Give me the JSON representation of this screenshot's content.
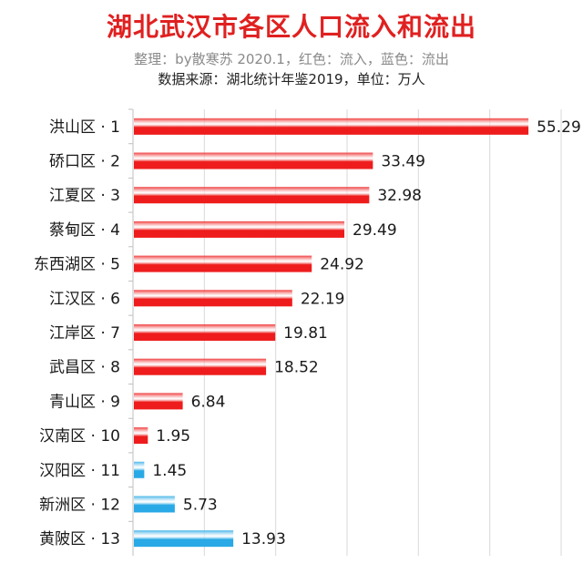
{
  "title": "湖北武汉市各区人口流入和流出",
  "subtitle": "整理：by散寒苏 2020.1，红色：流入，蓝色：流出",
  "source": "数据来源：湖北统计年鉴2019，单位：万人",
  "colors": {
    "inflow": "#ee1c1c",
    "outflow": "#29a9e6",
    "grid": "#d9d9d9",
    "title": "#e02020"
  },
  "chart_data": {
    "type": "bar",
    "orientation": "horizontal",
    "title": "湖北武汉市各区人口流入和流出",
    "categories": [
      "洪山区 · 1",
      "硚口区 · 2",
      "江夏区 · 3",
      "蔡甸区 · 4",
      "东西湖区 · 5",
      "江汉区 · 6",
      "江岸区 · 7",
      "武昌区 · 8",
      "青山区 · 9",
      "汉南区 · 10",
      "汉阳区 · 11",
      "新洲区 · 12",
      "黄陂区 · 13"
    ],
    "values": [
      55.29,
      33.49,
      32.98,
      29.49,
      24.92,
      22.19,
      19.81,
      18.52,
      6.84,
      1.95,
      1.45,
      5.73,
      13.93
    ],
    "labels": [
      "55.29",
      "33.49",
      "32.98",
      "29.49",
      "24.92",
      "22.19",
      "19.81",
      "18.52",
      "6.84",
      "1.95",
      "1.45",
      "5.73",
      "13.93"
    ],
    "direction": [
      "流入",
      "流入",
      "流入",
      "流入",
      "流入",
      "流入",
      "流入",
      "流入",
      "流入",
      "流入",
      "流出",
      "流出",
      "流出"
    ],
    "xlim": [
      0,
      60
    ],
    "grid": true
  }
}
